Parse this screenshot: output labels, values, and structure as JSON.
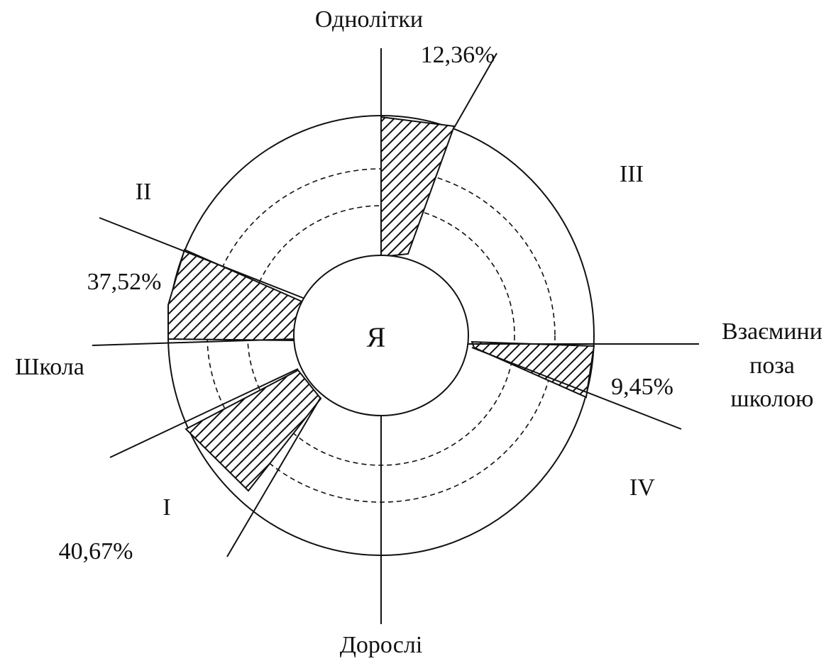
{
  "center": "Я",
  "axes": {
    "top": "Однолітки",
    "bottom": "Дорослі",
    "left": "Школа",
    "right": [
      "Взаємини",
      "поза",
      "школою"
    ]
  },
  "quadrants": {
    "I": "I",
    "II": "II",
    "III": "III",
    "IV": "IV"
  },
  "percentages": {
    "top": "12,36%",
    "upper_left": "37,52%",
    "lower_left": "40,67%",
    "right": "9,45%"
  }
}
